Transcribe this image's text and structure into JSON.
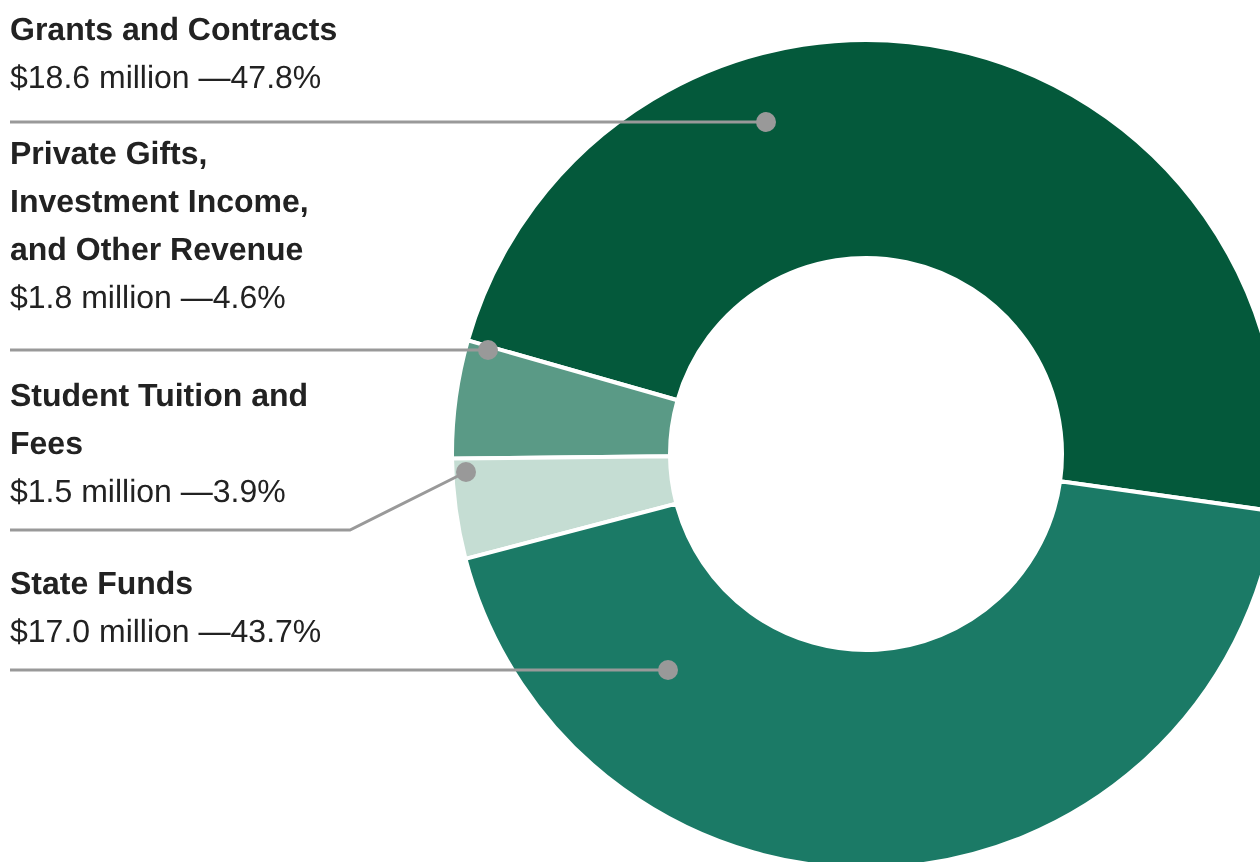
{
  "chart_data": {
    "type": "donut",
    "categories": [
      "Grants and Contracts",
      "Private Gifts, Investment Income, and Other Revenue",
      "Student Tuition and Fees",
      "State Funds"
    ],
    "values": [
      47.8,
      4.6,
      3.9,
      43.7
    ],
    "colors": [
      "#04593b",
      "#5a9a86",
      "#c5ddd3",
      "#1b7a66"
    ],
    "value_labels": [
      "$18.6 million —47.8%",
      "$1.8 million —4.6%",
      "$1.5 million —3.9%",
      "$17.0 million —43.7%"
    ]
  }
}
